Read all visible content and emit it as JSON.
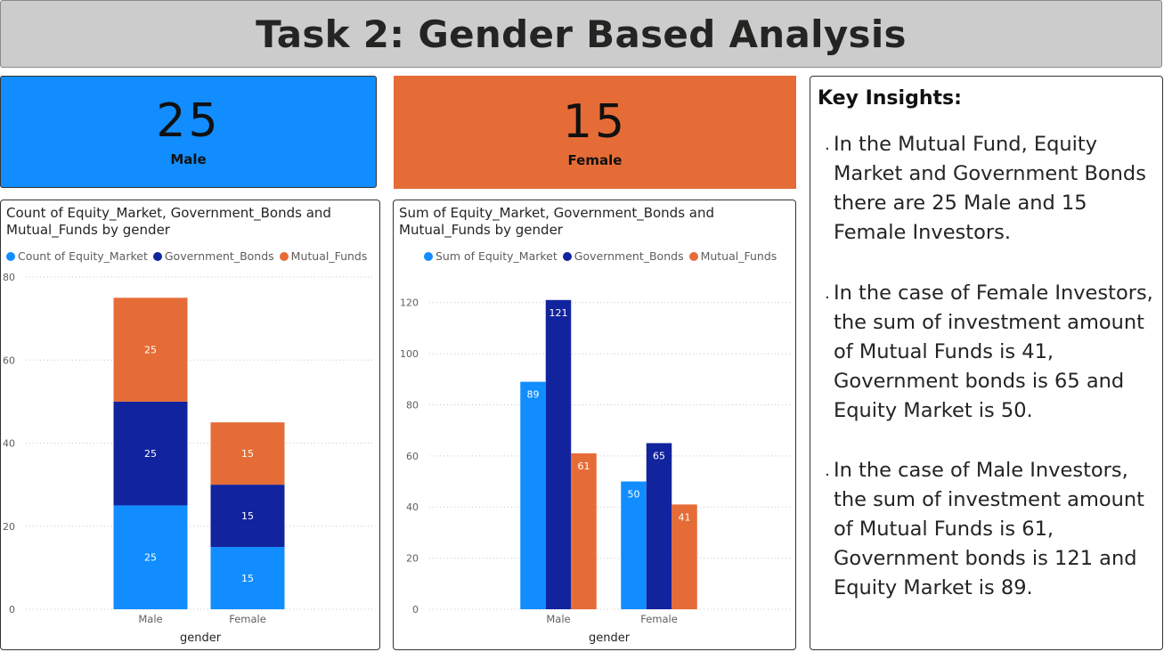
{
  "title": "Task 2: Gender Based Analysis",
  "colors": {
    "male_card": "#118DFF",
    "female_card": "#E66C37",
    "equity": "#118DFF",
    "government": "#12239E",
    "mutual": "#E66C37"
  },
  "cards": {
    "male": {
      "value": "25",
      "label": "Male"
    },
    "female": {
      "value": "15",
      "label": "Female"
    }
  },
  "chart_data": [
    {
      "type": "bar",
      "stacked": true,
      "title": "Count of Equity_Market, Government_Bonds and Mutual_Funds by gender",
      "xlabel": "gender",
      "ylabel": "",
      "categories": [
        "Male",
        "Female"
      ],
      "series": [
        {
          "name": "Count of Equity_Market",
          "values": [
            25,
            15
          ]
        },
        {
          "name": "Government_Bonds",
          "values": [
            25,
            15
          ]
        },
        {
          "name": "Mutual_Funds",
          "values": [
            25,
            15
          ]
        }
      ],
      "ylim": [
        0,
        80
      ],
      "yticks": [
        0,
        20,
        40,
        60,
        80
      ],
      "grid": true,
      "legend": "top-left"
    },
    {
      "type": "bar",
      "stacked": false,
      "title": "Sum of Equity_Market, Government_Bonds and Mutual_Funds by gender",
      "xlabel": "gender",
      "ylabel": "",
      "categories": [
        "Male",
        "Female"
      ],
      "series": [
        {
          "name": "Sum of Equity_Market",
          "values": [
            89,
            50
          ]
        },
        {
          "name": "Government_Bonds",
          "values": [
            121,
            65
          ]
        },
        {
          "name": "Mutual_Funds",
          "values": [
            61,
            41
          ]
        }
      ],
      "ylim": [
        0,
        130
      ],
      "yticks": [
        0,
        20,
        40,
        60,
        80,
        100,
        120
      ],
      "grid": true,
      "legend": "top-center"
    }
  ],
  "insights": {
    "heading": "Key Insights:",
    "bullet": ".",
    "items": [
      "In the Mutual Fund, Equity Market and Government Bonds there are 25 Male and 15 Female Investors.",
      "In the case of Female Investors, the sum of investment amount of Mutual Funds is 41, Government bonds is 65 and Equity Market is 50.",
      "In the case of Male Investors, the sum of investment amount of Mutual Funds is 61, Government bonds is 121 and Equity Market is 89."
    ]
  }
}
